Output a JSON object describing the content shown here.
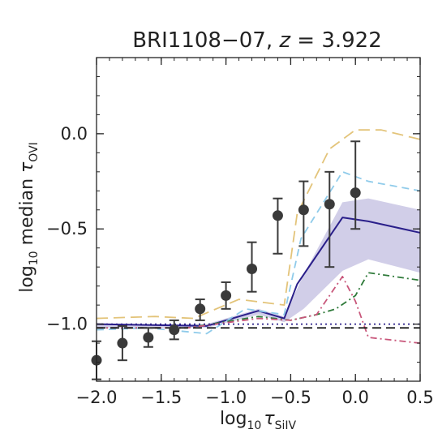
{
  "chart_data": {
    "type": "line",
    "title": "BRI1108−07, z = 3.922",
    "title_parts": {
      "name": "BRI1108−07, ",
      "z": "z",
      "eq": " = 3.922"
    },
    "xlabel": {
      "pre": "log",
      "sub": "10",
      "sym": "τ",
      "symsub": "SiIV"
    },
    "ylabel": {
      "pre": "log",
      "sub": "10",
      "mid": " median ",
      "sym": "τ",
      "symsub": "OVI"
    },
    "xlim": [
      -2.0,
      0.5
    ],
    "ylim": [
      -1.3,
      0.4
    ],
    "xticks": [
      -2.0,
      -1.5,
      -1.0,
      -0.5,
      0.0,
      0.5
    ],
    "xtick_labels": [
      "−2.0",
      "−1.5",
      "−1.0",
      "−0.5",
      "0.0",
      "0.5"
    ],
    "yticks": [
      -1.0,
      -0.5,
      0.0
    ],
    "ytick_labels": [
      "−1.0",
      "−0.5",
      "0.0"
    ],
    "grid": false,
    "observed": {
      "x": [
        -2.0,
        -1.8,
        -1.6,
        -1.4,
        -1.2,
        -1.0,
        -0.8,
        -0.6,
        -0.4,
        -0.2,
        0.0
      ],
      "y": [
        -1.19,
        -1.1,
        -1.07,
        -1.03,
        -0.92,
        -0.85,
        -0.71,
        -0.43,
        -0.4,
        -0.37,
        -0.31
      ],
      "yerr_low": [
        0.1,
        0.09,
        0.05,
        0.05,
        0.06,
        0.07,
        0.12,
        0.2,
        0.19,
        0.33,
        0.19
      ],
      "yerr_high": [
        0.1,
        0.09,
        0.05,
        0.05,
        0.05,
        0.07,
        0.14,
        0.09,
        0.15,
        0.17,
        0.27
      ],
      "color": "#3a3a3a"
    },
    "band": {
      "x": [
        -2.0,
        -1.15,
        -0.75,
        -0.55,
        -0.4,
        -0.1,
        0.1,
        0.5
      ],
      "lower": [
        -1.02,
        -1.02,
        -0.95,
        -0.99,
        -0.92,
        -0.72,
        -0.66,
        -0.73
      ],
      "upper": [
        -1.0,
        -1.0,
        -0.92,
        -0.96,
        -0.74,
        -0.36,
        -0.34,
        -0.4
      ],
      "color": "#b9b4db"
    },
    "series": [
      {
        "style": "solid",
        "color": "#2a1f8a",
        "x": [
          -2.0,
          -1.15,
          -0.75,
          -0.55,
          -0.45,
          -0.1,
          0.1,
          0.5
        ],
        "y": [
          -1.0,
          -1.01,
          -0.93,
          -0.97,
          -0.79,
          -0.44,
          -0.46,
          -0.52
        ]
      },
      {
        "style": "longdash",
        "color": "#e3c47a",
        "x": [
          -2.0,
          -1.55,
          -1.25,
          -0.9,
          -0.55,
          -0.45,
          -0.2,
          0.0,
          0.2,
          0.5
        ],
        "y": [
          -0.97,
          -0.96,
          -0.97,
          -0.87,
          -0.9,
          -0.42,
          -0.08,
          0.02,
          0.02,
          -0.03
        ]
      },
      {
        "style": "dashed",
        "color": "#8fcbea",
        "x": [
          -2.0,
          -1.6,
          -1.15,
          -0.85,
          -0.55,
          -0.42,
          -0.1,
          0.1,
          0.5
        ],
        "y": [
          -1.03,
          -1.02,
          -1.05,
          -0.92,
          -0.95,
          -0.55,
          -0.2,
          -0.25,
          -0.3
        ]
      },
      {
        "style": "dashdot",
        "color": "#2f7a3a",
        "x": [
          -2.0,
          -1.3,
          -0.75,
          -0.5,
          -0.3,
          -0.15,
          0.0,
          0.1,
          0.5
        ],
        "y": [
          -1.02,
          -1.02,
          -0.96,
          -0.98,
          -0.95,
          -0.92,
          -0.85,
          -0.73,
          -0.77
        ]
      },
      {
        "style": "dashdot",
        "color": "#c8567a",
        "x": [
          -2.0,
          -1.3,
          -0.75,
          -0.5,
          -0.3,
          -0.1,
          0.0,
          0.1,
          0.5
        ],
        "y": [
          -1.02,
          -1.02,
          -0.97,
          -0.98,
          -0.95,
          -0.75,
          -0.88,
          -1.07,
          -1.1
        ]
      },
      {
        "style": "dotted",
        "color": "#2a1f8a",
        "x": [
          -2.0,
          0.5
        ],
        "y": [
          -1.0,
          -1.0
        ]
      },
      {
        "style": "dashed-black",
        "color": "#111111",
        "x": [
          -2.0,
          0.5
        ],
        "y": [
          -1.02,
          -1.02
        ]
      }
    ]
  }
}
